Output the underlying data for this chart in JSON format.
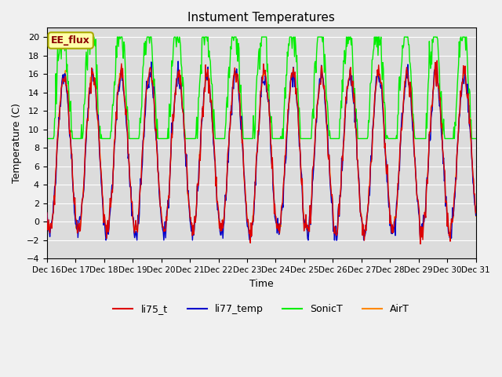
{
  "title": "Instument Temperatures",
  "xlabel": "Time",
  "ylabel": "Temperature (C)",
  "ylim": [
    -4,
    21
  ],
  "yticks": [
    -4,
    -2,
    0,
    2,
    4,
    6,
    8,
    10,
    12,
    14,
    16,
    18,
    20
  ],
  "xtick_labels": [
    "Dec 16",
    "Dec 17",
    "Dec 18",
    "Dec 19",
    "Dec 20",
    "Dec 21",
    "Dec 22",
    "Dec 23",
    "Dec 24",
    "Dec 25",
    "Dec 26",
    "Dec 27",
    "Dec 28",
    "Dec 29",
    "Dec 30",
    "Dec 31"
  ],
  "colors": {
    "li75_t": "#dd0000",
    "li77_temp": "#0000cc",
    "SonicT": "#00ee00",
    "AirT": "#ff8800"
  },
  "bg_color": "#dcdcdc",
  "fig_bg_color": "#f0f0f0",
  "annotation_text": "EE_flux",
  "annotation_bg": "#ffffaa",
  "annotation_border": "#aaaa00",
  "n_days": 15,
  "n_points_per_day": 48
}
